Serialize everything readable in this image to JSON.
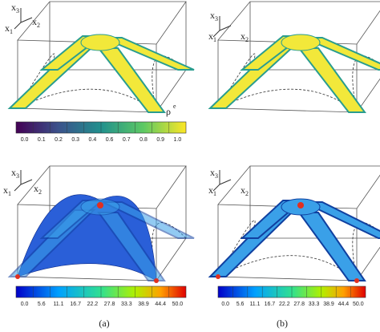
{
  "panels": [
    {
      "axis_labels": [
        {
          "base": "x",
          "sub": "3"
        },
        {
          "base": "x",
          "sub": "1"
        },
        {
          "base": "x",
          "sub": "2"
        }
      ],
      "field_label": {
        "base": "ρ",
        "sup": "e"
      }
    },
    {
      "axis_labels": [
        {
          "base": "x",
          "sub": "3"
        },
        {
          "base": "x",
          "sub": "1"
        },
        {
          "base": "x",
          "sub": "2"
        }
      ]
    },
    {
      "axis_labels": [
        {
          "base": "x",
          "sub": "3"
        },
        {
          "base": "x",
          "sub": "1"
        },
        {
          "base": "x",
          "sub": "2"
        }
      ]
    },
    {
      "axis_labels": [
        {
          "base": "x",
          "sub": "3"
        },
        {
          "base": "x",
          "sub": "1"
        },
        {
          "base": "x",
          "sub": "2"
        }
      ]
    }
  ],
  "colorbars": [
    {
      "ticks": [
        "0.0",
        "0.1",
        "0.2",
        "0.3",
        "0.4",
        "0.6",
        "0.7",
        "0.8",
        "0.9",
        "1.0"
      ]
    },
    {
      "ticks": [
        "0.0",
        "5.6",
        "11.1",
        "16.7",
        "22.2",
        "27.8",
        "33.3",
        "38.9",
        "44.4",
        "50.0"
      ]
    },
    {
      "ticks": [
        "0.0",
        "5.6",
        "11.1",
        "16.7",
        "22.2",
        "27.8",
        "33.3",
        "38.9",
        "44.4",
        "50.0"
      ]
    }
  ],
  "captions": [
    "(a)",
    "(b)"
  ]
}
